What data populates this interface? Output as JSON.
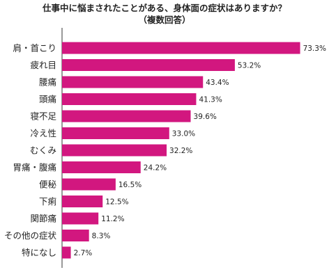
{
  "chart_data": {
    "type": "bar",
    "orientation": "horizontal",
    "title": "仕事中に悩まされたことがある、身体面の症状はありますか？",
    "subtitle": "（複数回答）",
    "xlabel": "",
    "ylabel": "",
    "xlim": [
      0,
      80
    ],
    "grid": false,
    "legend": "none",
    "bar_color": "#d2177f",
    "categories": [
      "肩・首こり",
      "疲れ目",
      "腰痛",
      "頭痛",
      "寝不足",
      "冷え性",
      "むくみ",
      "胃痛・腹痛",
      "便秘",
      "下痢",
      "関節痛",
      "その他の症状",
      "特になし"
    ],
    "values": [
      73.3,
      53.2,
      43.4,
      41.3,
      39.6,
      33.0,
      32.2,
      24.2,
      16.5,
      12.5,
      11.2,
      8.3,
      2.7
    ],
    "value_labels": [
      "73.3%",
      "53.2%",
      "43.4%",
      "41.3%",
      "39.6%",
      "33.0%",
      "32.2%",
      "24.2%",
      "16.5%",
      "12.5%",
      "11.2%",
      "8.3%",
      "2.7%"
    ]
  }
}
